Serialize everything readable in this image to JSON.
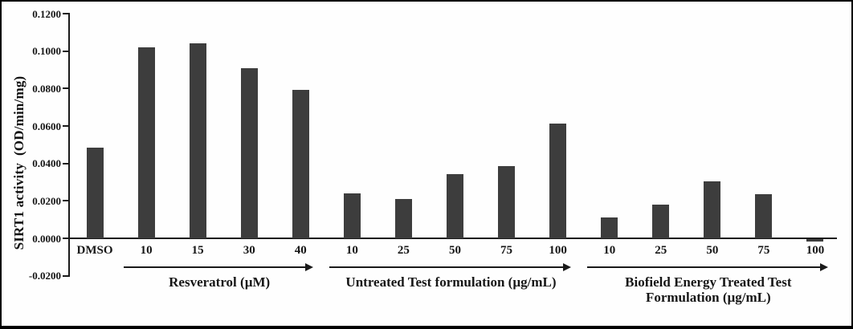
{
  "chart_data": {
    "type": "bar",
    "title": "",
    "ylabel": "SIRT1 activity  (OD/min/mg)",
    "xlabel": "",
    "bar_color": "#3d3d3d",
    "grid": false,
    "legend": "none",
    "ylim": [
      -0.02,
      0.12
    ],
    "ytick_step": 0.02,
    "yticks": [
      "0.1200",
      "0.1000",
      "0.0800",
      "0.0600",
      "0.0400",
      "0.0200",
      "0.0000",
      "-0.0200"
    ],
    "groups": [
      {
        "label_lines": [],
        "arrow": false,
        "categories": [
          "DMSO"
        ],
        "values": [
          0.0485
        ]
      },
      {
        "label_lines": [
          "Resveratrol (µM)"
        ],
        "arrow": true,
        "categories": [
          "10",
          "15",
          "30",
          "40"
        ],
        "values": [
          0.102,
          0.104,
          0.091,
          0.0795
        ]
      },
      {
        "label_lines": [
          "Untreated Test formulation (µg/mL)"
        ],
        "arrow": true,
        "categories": [
          "10",
          "25",
          "50",
          "75",
          "100"
        ],
        "values": [
          0.024,
          0.021,
          0.0345,
          0.0385,
          0.0615
        ]
      },
      {
        "label_lines": [
          "Biofield Energy Treated Test",
          "Formulation (µg/mL)"
        ],
        "arrow": true,
        "categories": [
          "10",
          "25",
          "50",
          "75",
          "100"
        ],
        "values": [
          0.011,
          0.018,
          0.0305,
          0.0235,
          -0.0015
        ]
      }
    ]
  }
}
